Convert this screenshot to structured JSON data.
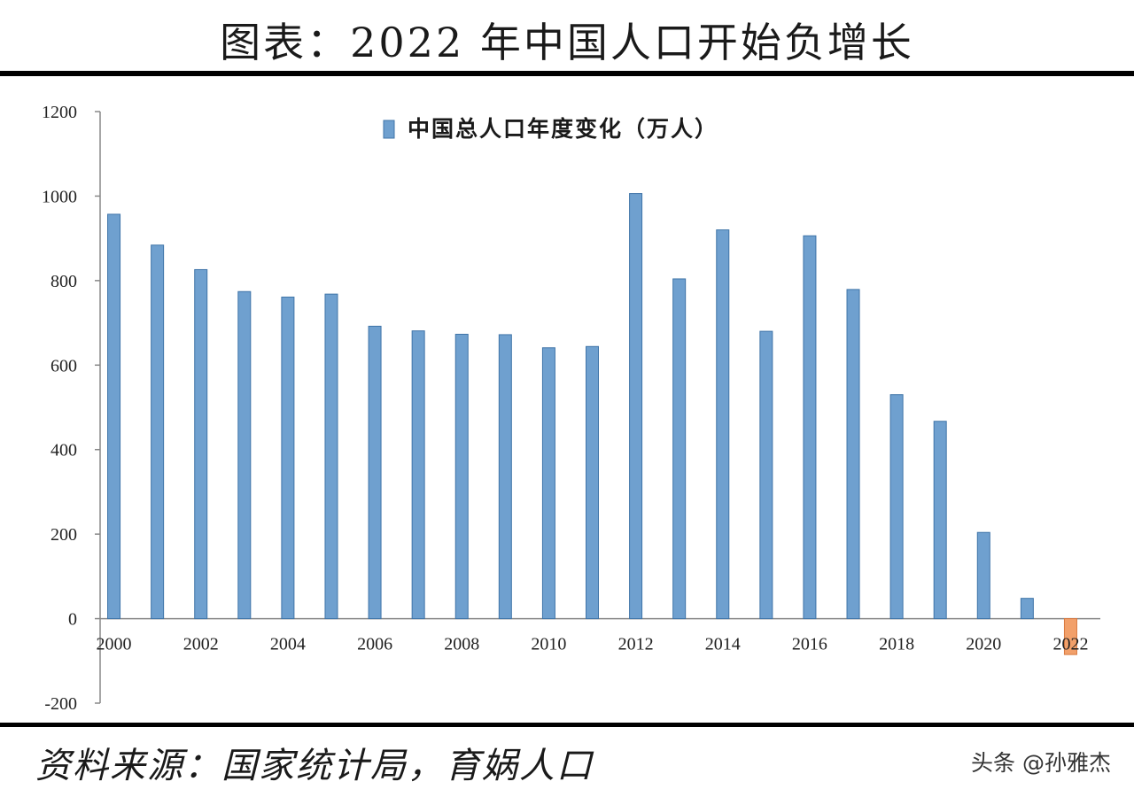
{
  "header": {
    "title": "图表：2022 年中国人口开始负增长"
  },
  "footer": {
    "source": "资料来源：国家统计局，育娲人口",
    "watermark": "头条 @孙雅杰"
  },
  "colors": {
    "bar_positive": "#6fa0cf",
    "bar_positive_stroke": "#3f74a8",
    "bar_negative": "#f2a06a",
    "bar_negative_stroke": "#d9793f",
    "axis": "#888888"
  },
  "chart_data": {
    "type": "bar",
    "title": "",
    "xlabel": "",
    "ylabel": "",
    "legend": {
      "label": "中国总人口年度变化（万人）",
      "position": "top-center"
    },
    "grid": false,
    "ylim": [
      -200,
      1200
    ],
    "yticks": [
      -200,
      0,
      200,
      400,
      600,
      800,
      1000,
      1200
    ],
    "xtick_labels": [
      "2000",
      "2002",
      "2004",
      "2006",
      "2008",
      "2010",
      "2012",
      "2014",
      "2016",
      "2018",
      "2020",
      "2022"
    ],
    "categories": [
      "2000",
      "2001",
      "2002",
      "2003",
      "2004",
      "2005",
      "2006",
      "2007",
      "2008",
      "2009",
      "2010",
      "2011",
      "2012",
      "2013",
      "2014",
      "2015",
      "2016",
      "2017",
      "2018",
      "2019",
      "2020",
      "2021",
      "2022"
    ],
    "series": [
      {
        "name": "中国总人口年度变化（万人）",
        "values": [
          957,
          884,
          826,
          774,
          761,
          768,
          692,
          681,
          673,
          672,
          641,
          644,
          1006,
          804,
          920,
          680,
          906,
          779,
          530,
          467,
          204,
          48,
          -85
        ]
      }
    ]
  }
}
